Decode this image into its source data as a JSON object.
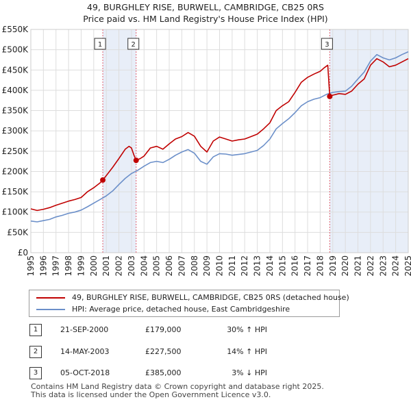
{
  "title_line1": "49, BURGHLEY RISE, BURWELL, CAMBRIDGE, CB25 0RS",
  "title_line2": "Price paid vs. HM Land Registry's House Price Index (HPI)",
  "legend": {
    "property": "49, BURGHLEY RISE, BURWELL, CAMBRIDGE, CB25 0RS (detached house)",
    "hpi": "HPI: Average price, detached house, East Cambridgeshire"
  },
  "colors": {
    "property": "#c00000",
    "hpi": "#6b8fc9",
    "shade": "#e8eef8",
    "marker_line": "#e06070",
    "grid": "#dddddd"
  },
  "sales": [
    {
      "num": "1",
      "date": "21-SEP-2000",
      "price": "£179,000",
      "hpi": "30% ↑ HPI"
    },
    {
      "num": "2",
      "date": "14-MAY-2003",
      "price": "£227,500",
      "hpi": "14% ↑ HPI"
    },
    {
      "num": "3",
      "date": "05-OCT-2018",
      "price": "£385,000",
      "hpi": "3% ↓ HPI"
    }
  ],
  "footer_line1": "Contains HM Land Registry data © Crown copyright and database right 2025.",
  "footer_line2": "This data is licensed under the Open Government Licence v3.0.",
  "chart_data": {
    "type": "line",
    "title": "49, BURGHLEY RISE, BURWELL, CAMBRIDGE, CB25 0RS — Price paid vs. HM Land Registry's House Price Index (HPI)",
    "xlabel": "",
    "ylabel": "",
    "xlim": [
      1995,
      2025
    ],
    "ylim": [
      0,
      550000
    ],
    "grid": true,
    "y_ticks": [
      0,
      50000,
      100000,
      150000,
      200000,
      250000,
      300000,
      350000,
      400000,
      450000,
      500000,
      550000
    ],
    "y_tick_labels": [
      "£0",
      "£50K",
      "£100K",
      "£150K",
      "£200K",
      "£250K",
      "£300K",
      "£350K",
      "£400K",
      "£450K",
      "£500K",
      "£550K"
    ],
    "x_ticks": [
      1995,
      1996,
      1997,
      1998,
      1999,
      2000,
      2001,
      2002,
      2003,
      2004,
      2005,
      2006,
      2007,
      2008,
      2009,
      2010,
      2011,
      2012,
      2013,
      2014,
      2015,
      2016,
      2017,
      2018,
      2019,
      2020,
      2021,
      2022,
      2023,
      2024,
      2025
    ],
    "x_tick_labels": [
      "1995",
      "1996",
      "1997",
      "1998",
      "1999",
      "2000",
      "2001",
      "2002",
      "2003",
      "2004",
      "2005",
      "2006",
      "2007",
      "2008",
      "2009",
      "2010",
      "2011",
      "2012",
      "2013",
      "2014",
      "2015",
      "2016",
      "2017",
      "2018",
      "2019",
      "2020",
      "2021",
      "2022",
      "2023",
      "2024",
      "2025"
    ],
    "shaded_ranges": [
      [
        2000.72,
        2003.37
      ],
      [
        2018.76,
        2025
      ]
    ],
    "sale_markers": [
      {
        "label": "1",
        "x": 2000.72,
        "y": 179000
      },
      {
        "label": "2",
        "x": 2003.37,
        "y": 227500
      },
      {
        "label": "3",
        "x": 2018.76,
        "y": 385000
      }
    ],
    "series": [
      {
        "name": "49, BURGHLEY RISE, BURWELL, CAMBRIDGE, CB25 0RS (detached house)",
        "x": [
          1995,
          1995.5,
          1996,
          1996.5,
          1997,
          1997.5,
          1998,
          1998.5,
          1999,
          1999.5,
          2000,
          2000.5,
          2000.72,
          2001,
          2001.5,
          2002,
          2002.5,
          2002.8,
          2003,
          2003.2,
          2003.37,
          2003.7,
          2004,
          2004.5,
          2005,
          2005.5,
          2006,
          2006.5,
          2007,
          2007.5,
          2008,
          2008.5,
          2009,
          2009.5,
          2010,
          2010.5,
          2011,
          2011.5,
          2012,
          2012.5,
          2013,
          2013.5,
          2014,
          2014.5,
          2015,
          2015.5,
          2016,
          2016.5,
          2017,
          2017.5,
          2018,
          2018.3,
          2018.6,
          2018.76,
          2019,
          2019.5,
          2020,
          2020.5,
          2021,
          2021.5,
          2022,
          2022.5,
          2023,
          2023.5,
          2024,
          2024.5,
          2025
        ],
        "values": [
          108000,
          104000,
          107000,
          111000,
          117000,
          122000,
          127000,
          131000,
          136000,
          150000,
          160000,
          172000,
          179000,
          190000,
          210000,
          232000,
          255000,
          262000,
          258000,
          240000,
          227500,
          232000,
          238000,
          258000,
          262000,
          255000,
          268000,
          280000,
          286000,
          296000,
          287000,
          262000,
          248000,
          275000,
          285000,
          280000,
          275000,
          278000,
          280000,
          286000,
          292000,
          305000,
          320000,
          350000,
          362000,
          372000,
          395000,
          420000,
          432000,
          440000,
          447000,
          455000,
          462000,
          385000,
          388000,
          392000,
          390000,
          398000,
          415000,
          428000,
          462000,
          478000,
          470000,
          458000,
          462000,
          470000,
          478000
        ]
      },
      {
        "name": "HPI: Average price, detached house, East Cambridgeshire",
        "x": [
          1995,
          1995.5,
          1996,
          1996.5,
          1997,
          1997.5,
          1998,
          1998.5,
          1999,
          1999.5,
          2000,
          2000.5,
          2001,
          2001.5,
          2002,
          2002.5,
          2003,
          2003.5,
          2004,
          2004.5,
          2005,
          2005.5,
          2006,
          2006.5,
          2007,
          2007.5,
          2008,
          2008.5,
          2009,
          2009.5,
          2010,
          2010.5,
          2011,
          2011.5,
          2012,
          2012.5,
          2013,
          2013.5,
          2014,
          2014.5,
          2015,
          2015.5,
          2016,
          2016.5,
          2017,
          2017.5,
          2018,
          2018.5,
          2019,
          2019.5,
          2020,
          2020.5,
          2021,
          2021.5,
          2022,
          2022.5,
          2023,
          2023.5,
          2024,
          2024.5,
          2025
        ],
        "values": [
          78000,
          76000,
          79000,
          82000,
          88000,
          92000,
          97000,
          100000,
          105000,
          113000,
          122000,
          131000,
          140000,
          152000,
          168000,
          183000,
          195000,
          203000,
          213000,
          222000,
          225000,
          222000,
          230000,
          240000,
          248000,
          254000,
          245000,
          225000,
          218000,
          236000,
          244000,
          243000,
          240000,
          242000,
          244000,
          248000,
          252000,
          264000,
          280000,
          305000,
          318000,
          330000,
          345000,
          362000,
          372000,
          378000,
          382000,
          390000,
          395000,
          397000,
          398000,
          410000,
          428000,
          445000,
          472000,
          488000,
          480000,
          475000,
          480000,
          488000,
          495000
        ]
      }
    ]
  }
}
